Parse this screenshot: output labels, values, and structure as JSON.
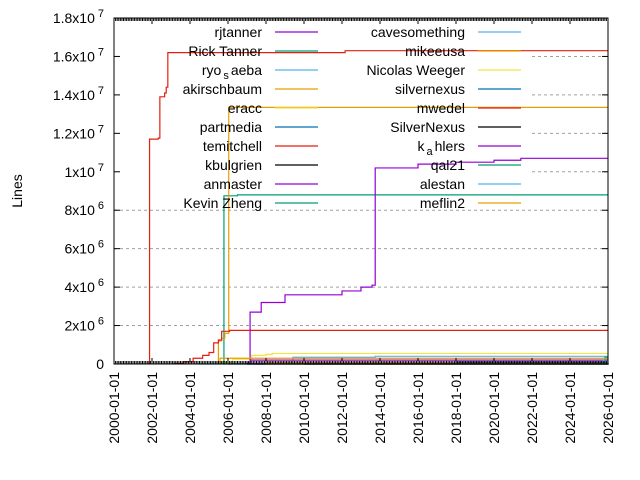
{
  "chart_data": {
    "type": "line",
    "title": "",
    "xlabel": "",
    "ylabel": "Lines",
    "xlim": [
      "2000-01-01",
      "2026-01-01"
    ],
    "ylim": [
      0,
      18000000
    ],
    "grid": true,
    "legend_placement": "top-left, two columns",
    "x_ticks": [
      "2000-01-01",
      "2002-01-01",
      "2004-01-01",
      "2006-01-01",
      "2008-01-01",
      "2010-01-01",
      "2012-01-01",
      "2014-01-01",
      "2016-01-01",
      "2018-01-01",
      "2020-01-01",
      "2022-01-01",
      "2024-01-01",
      "2026-01-01"
    ],
    "y_ticks": [
      {
        "value": 0,
        "mant": "0",
        "exp": ""
      },
      {
        "value": 2000000,
        "mant": "2x10",
        "exp": "6"
      },
      {
        "value": 4000000,
        "mant": "4x10",
        "exp": "6"
      },
      {
        "value": 6000000,
        "mant": "6x10",
        "exp": "6"
      },
      {
        "value": 8000000,
        "mant": "8x10",
        "exp": "6"
      },
      {
        "value": 10000000,
        "mant": "1x10",
        "exp": "7"
      },
      {
        "value": 12000000,
        "mant": "1.2x10",
        "exp": "7"
      },
      {
        "value": 14000000,
        "mant": "1.4x10",
        "exp": "7"
      },
      {
        "value": 16000000,
        "mant": "1.6x10",
        "exp": "7"
      },
      {
        "value": 18000000,
        "mant": "1.8x10",
        "exp": "7"
      }
    ],
    "series": [
      {
        "name": "rjtanner",
        "color": "#9400d3",
        "points": [
          [
            "2007-06-01",
            0
          ],
          [
            "2026-01-01",
            50000
          ]
        ]
      },
      {
        "name": "Rick Tanner",
        "color": "#009e73",
        "points": [
          [
            "2005-10-01",
            0
          ],
          [
            "2005-10-15",
            8750000
          ],
          [
            "2006-07-01",
            8800000
          ],
          [
            "2026-01-01",
            8800000
          ]
        ]
      },
      {
        "name": "ryo_saeba",
        "color": "#56b4e9",
        "points": [
          [
            "2004-06-01",
            0
          ],
          [
            "2026-01-01",
            20000
          ]
        ]
      },
      {
        "name": "akirschbaum",
        "color": "#e69f00",
        "points": [
          [
            "2005-07-01",
            1200000
          ],
          [
            "2005-09-01",
            1350000
          ],
          [
            "2005-11-01",
            1600000
          ],
          [
            "2006-01-15",
            13350000
          ],
          [
            "2026-01-01",
            13350000
          ]
        ]
      },
      {
        "name": "eracc",
        "color": "#f0e442",
        "points": [
          [
            "2005-06-01",
            80000
          ],
          [
            "2006-04-01",
            250000
          ],
          [
            "2007-04-01",
            450000
          ],
          [
            "2008-01-01",
            500000
          ],
          [
            "2008-05-01",
            550000
          ],
          [
            "2026-01-01",
            550000
          ]
        ]
      },
      {
        "name": "partmedia",
        "color": "#0072b2",
        "points": [
          [
            "2006-01-01",
            0
          ],
          [
            "2026-01-01",
            20000
          ]
        ]
      },
      {
        "name": "temitchell",
        "color": "#e51e10",
        "points": [
          [
            "2003-03-01",
            30000
          ],
          [
            "2003-09-01",
            120000
          ],
          [
            "2004-03-01",
            300000
          ],
          [
            "2004-09-01",
            450000
          ],
          [
            "2005-01-01",
            600000
          ],
          [
            "2005-04-01",
            1100000
          ],
          [
            "2005-07-01",
            1250000
          ],
          [
            "2005-09-01",
            1700000
          ],
          [
            "2006-02-01",
            1750000
          ],
          [
            "2026-01-01",
            1750000
          ]
        ]
      },
      {
        "name": "kbulgrien",
        "color": "#000000",
        "points": [
          [
            "2007-01-01",
            0
          ],
          [
            "2026-01-01",
            10000
          ]
        ]
      },
      {
        "name": "anmaster",
        "color": "#9400d3",
        "points": [
          [
            "2007-03-01",
            2700000
          ],
          [
            "2007-10-01",
            3200000
          ],
          [
            "2009-01-01",
            3600000
          ],
          [
            "2012-01-01",
            3800000
          ],
          [
            "2013-01-01",
            4000000
          ],
          [
            "2013-08-01",
            4100000
          ],
          [
            "2013-10-01",
            10200000
          ],
          [
            "2016-01-01",
            10400000
          ],
          [
            "2018-01-01",
            10500000
          ],
          [
            "2020-01-01",
            10600000
          ],
          [
            "2021-06-01",
            10700000
          ],
          [
            "2026-01-01",
            10700000
          ]
        ]
      },
      {
        "name": "Kevin Zheng",
        "color": "#009e73",
        "points": [
          [
            "2024-01-01",
            0
          ],
          [
            "2026-01-01",
            10000
          ]
        ]
      },
      {
        "name": "cavesomething",
        "color": "#56b4e9",
        "points": [
          [
            "2009-06-01",
            350000
          ],
          [
            "2013-10-01",
            400000
          ],
          [
            "2026-01-01",
            400000
          ]
        ]
      },
      {
        "name": "mikeeusa",
        "color": "#e69f00",
        "points": [
          [
            "2008-01-01",
            50000
          ],
          [
            "2026-01-01",
            50000
          ]
        ]
      },
      {
        "name": "Nicolas Weeger",
        "color": "#f0e442",
        "points": [
          [
            "2008-01-01",
            0
          ],
          [
            "2026-01-01",
            0
          ]
        ]
      },
      {
        "name": "silvernexus",
        "color": "#0072b2",
        "points": [
          [
            "2018-01-01",
            100000
          ],
          [
            "2026-01-01",
            120000
          ]
        ]
      },
      {
        "name": "mwedel",
        "color": "#e51e10",
        "points": [
          [
            "2001-11-15",
            11700000
          ],
          [
            "2002-05-01",
            11750000
          ],
          [
            "2002-06-01",
            13900000
          ],
          [
            "2002-09-01",
            14100000
          ],
          [
            "2002-10-01",
            14400000
          ],
          [
            "2002-11-01",
            16200000
          ],
          [
            "2012-03-01",
            16300000
          ],
          [
            "2026-01-01",
            16300000
          ]
        ]
      },
      {
        "name": "SilverNexus",
        "color": "#000000",
        "points": [
          [
            "2010-01-01",
            0
          ],
          [
            "2026-01-01",
            0
          ]
        ]
      },
      {
        "name": "k_ahlers",
        "color": "#9400d3",
        "points": [
          [
            "2007-01-01",
            50000
          ],
          [
            "2007-03-01",
            200000
          ],
          [
            "2026-01-01",
            200000
          ]
        ]
      },
      {
        "name": "qal21",
        "color": "#009e73",
        "points": [
          [
            "2025-10-01",
            200000
          ],
          [
            "2025-11-01",
            350000
          ],
          [
            "2026-01-01",
            350000
          ]
        ]
      },
      {
        "name": "alestan",
        "color": "#56b4e9",
        "points": [
          [
            "2025-10-01",
            250000
          ],
          [
            "2026-01-01",
            250000
          ]
        ]
      },
      {
        "name": "meflin2",
        "color": "#e69f00",
        "points": [
          [
            "2005-08-01",
            300000
          ],
          [
            "2026-01-01",
            300000
          ]
        ]
      }
    ]
  }
}
